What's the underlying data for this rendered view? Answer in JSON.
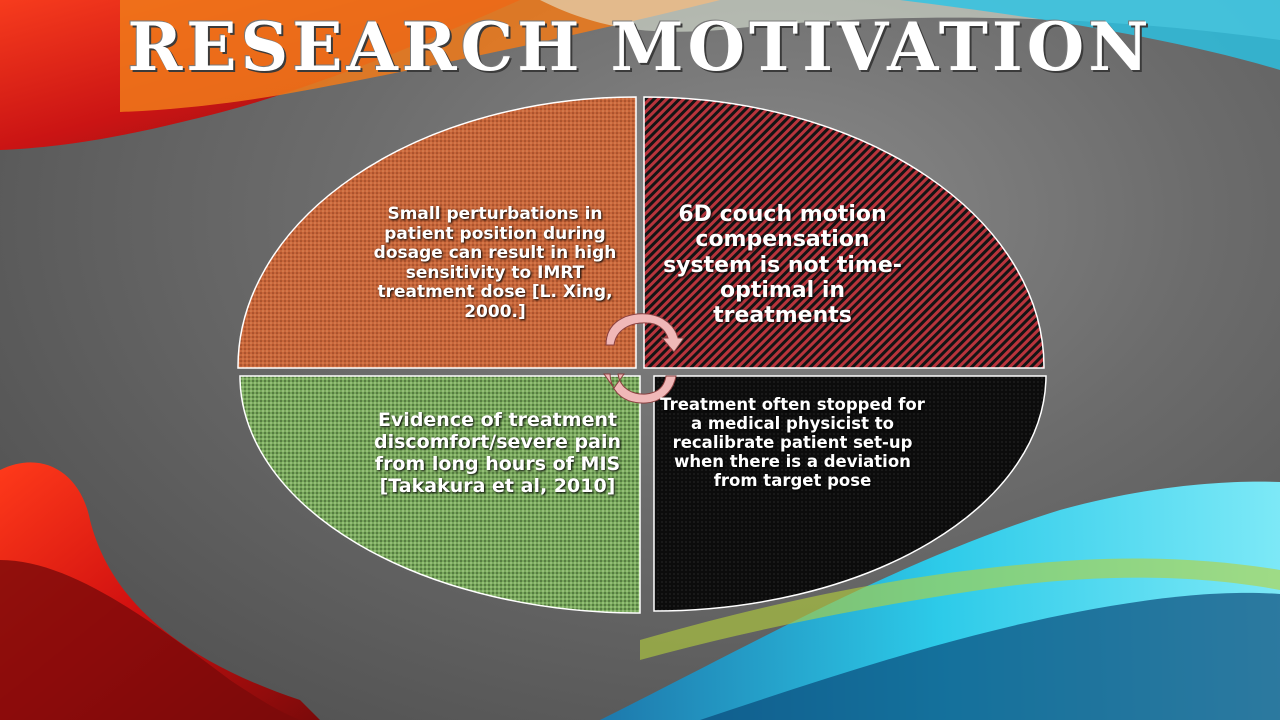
{
  "slide": {
    "title": "RESEARCH MOTIVATION",
    "quadrants": [
      {
        "id": "top-left",
        "text": "Small perturbations in patient position during dosage can result in high sensitivity to IMRT treatment dose [L. Xing, 2000.]",
        "color": "#c8663a"
      },
      {
        "id": "top-right",
        "text": "6D couch motion compensation system is not time-optimal in treatments",
        "color": "#b8343c"
      },
      {
        "id": "bottom-right",
        "text": "Treatment often stopped for a medical physicist to recalibrate patient set-up when there is a deviation from target pose",
        "color": "#0c0c0c"
      },
      {
        "id": "bottom-left",
        "text": "Evidence of treatment discomfort/severe pain from long hours of MIS [Takakura et al, 2010]",
        "color": "#78a85c"
      }
    ],
    "center_icon": "cycle-arrows-icon",
    "background": {
      "red_ribbon": "#e0201a",
      "orange_ribbon": "#f07a1a",
      "cyan_ribbon": "#29c4e6",
      "green_ribbon": "#b6d23a"
    }
  }
}
